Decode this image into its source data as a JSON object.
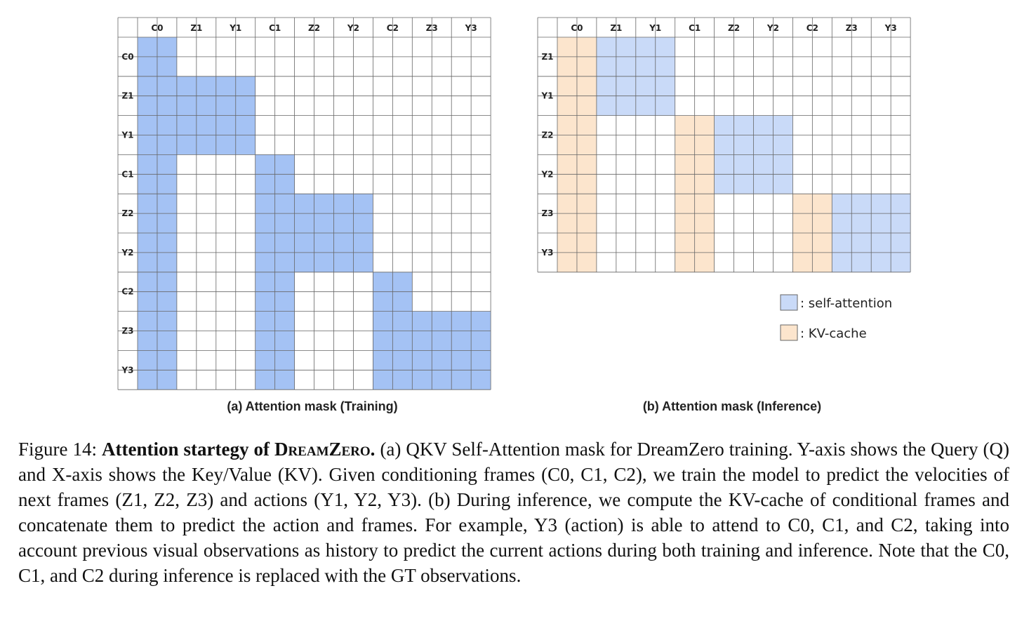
{
  "panel_a": {
    "columns": [
      "C0",
      "Z1",
      "Y1",
      "C1",
      "Z2",
      "Y2",
      "C2",
      "Z3",
      "Y3"
    ],
    "rows": [
      "C0",
      "Z1",
      "Y1",
      "C1",
      "Z2",
      "Y2",
      "C2",
      "Z3",
      "Y3"
    ],
    "mask": [
      [
        1,
        0,
        0,
        0,
        0,
        0,
        0,
        0,
        0
      ],
      [
        1,
        1,
        1,
        0,
        0,
        0,
        0,
        0,
        0
      ],
      [
        1,
        1,
        1,
        0,
        0,
        0,
        0,
        0,
        0
      ],
      [
        1,
        0,
        0,
        1,
        0,
        0,
        0,
        0,
        0
      ],
      [
        1,
        0,
        0,
        1,
        1,
        1,
        0,
        0,
        0
      ],
      [
        1,
        0,
        0,
        1,
        1,
        1,
        0,
        0,
        0
      ],
      [
        1,
        0,
        0,
        1,
        0,
        0,
        1,
        0,
        0
      ],
      [
        1,
        0,
        0,
        1,
        0,
        0,
        1,
        1,
        1
      ],
      [
        1,
        0,
        0,
        1,
        0,
        0,
        1,
        1,
        1
      ]
    ],
    "caption": "(a) Attention mask (Training)"
  },
  "panel_b": {
    "columns": [
      "C0",
      "Z1",
      "Y1",
      "C1",
      "Z2",
      "Y2",
      "C2",
      "Z3",
      "Y3"
    ],
    "rows": [
      "Z1",
      "Y1",
      "Z2",
      "Y2",
      "Z3",
      "Y3"
    ],
    "mask": [
      [
        "kv",
        "sa",
        "sa",
        "",
        "",
        "",
        "",
        "",
        ""
      ],
      [
        "kv",
        "sa",
        "sa",
        "",
        "",
        "",
        "",
        "",
        ""
      ],
      [
        "kv",
        "",
        "",
        "kv",
        "sa",
        "sa",
        "",
        "",
        ""
      ],
      [
        "kv",
        "",
        "",
        "kv",
        "sa",
        "sa",
        "",
        "",
        ""
      ],
      [
        "kv",
        "",
        "",
        "kv",
        "",
        "",
        "kv",
        "sa",
        "sa"
      ],
      [
        "kv",
        "",
        "",
        "kv",
        "",
        "",
        "kv",
        "sa",
        "sa"
      ]
    ],
    "caption": "(b) Attention mask (Inference)"
  },
  "legend": {
    "self_attention": ": self-attention",
    "kv_cache": ": KV-cache"
  },
  "colors": {
    "training_fill": "#a4c2f4",
    "self_attention_fill": "#c9daf8",
    "kv_cache_fill": "#fce5cd",
    "grid_line": "#666666"
  },
  "caption": {
    "prefix": "Figure 14: ",
    "bold": "Attention startegy of ",
    "smallcaps": "DreamZero.",
    "body": " (a) QKV Self-Attention mask for DreamZero training. Y-axis shows the Query (Q) and X-axis shows the Key/Value (KV). Given conditioning frames (C0, C1, C2), we train the model to predict the velocities of next frames (Z1, Z2, Z3) and actions (Y1, Y2, Y3). (b) During inference, we compute the KV-cache of conditional frames and concatenate them to predict the action and frames. For example, Y3 (action) is able to attend to C0, C1, and C2, taking into account previous visual observations as history to predict the current actions during both training and inference. Note that the C0, C1, and C2 during inference is replaced with the GT observations."
  }
}
